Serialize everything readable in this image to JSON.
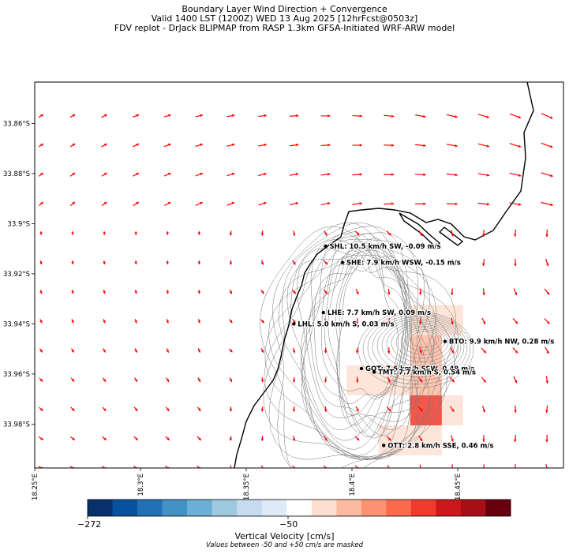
{
  "chart_data": {
    "type": "heatmap",
    "title_lines": [
      "Boundary Layer Wind Direction + Convergence",
      "Valid 1400 LST (1200Z) WED 13 Aug 2025 [12hrFcst@0503z]",
      "FDV replot - DrJack BLIPMAP from RASP 1.3km GFSA-Initiated WRF-ARW model"
    ],
    "xlim": [
      18.25,
      18.5
    ],
    "ylim": [
      -33.9975,
      -33.8435
    ],
    "x_ticks": [
      {
        "value": 18.25,
        "label": "18.25°E"
      },
      {
        "value": 18.3,
        "label": "18.3°E"
      },
      {
        "value": 18.35,
        "label": "18.35°E"
      },
      {
        "value": 18.4,
        "label": "18.4°E"
      },
      {
        "value": 18.45,
        "label": "18.45°E"
      }
    ],
    "y_ticks": [
      {
        "value": -33.86,
        "label": "33.86°S"
      },
      {
        "value": -33.88,
        "label": "33.88°S"
      },
      {
        "value": -33.9,
        "label": "33.9°S"
      },
      {
        "value": -33.92,
        "label": "33.92°S"
      },
      {
        "value": -33.94,
        "label": "33.94°S"
      },
      {
        "value": -33.96,
        "label": "33.96°S"
      },
      {
        "value": -33.98,
        "label": "33.98°S"
      }
    ],
    "stations": [
      {
        "x": 18.3875,
        "y": -33.909,
        "label": "SHL: 10.5 km/h SW, -0.09 m/s"
      },
      {
        "x": 18.3955,
        "y": -33.9155,
        "label": "SHE: 7.9 km/h WSW, -0.15 m/s"
      },
      {
        "x": 18.3865,
        "y": -33.9355,
        "label": "LHE: 7.7 km/h SW, 0.09 m/s"
      },
      {
        "x": 18.3725,
        "y": -33.94,
        "label": "LHL: 5.0 km/h S, 0.03 m/s"
      },
      {
        "x": 18.444,
        "y": -33.947,
        "label": "BTO: 9.9 km/h NW, 0.28 m/s"
      },
      {
        "x": 18.4045,
        "y": -33.9578,
        "label": "GOT: 7.6 km/h SSW, 0.49 m/s"
      },
      {
        "x": 18.4105,
        "y": -33.9592,
        "label": "TMT: 7.7 km/h S, 0.54 m/s"
      },
      {
        "x": 18.415,
        "y": -33.9885,
        "label": "OTT: 2.8 km/h SSE, 0.46 m/s"
      }
    ],
    "convergence_cells": [
      {
        "x": [
          18.4275,
          18.4425
        ],
        "y": [
          -33.9445,
          -33.9325
        ],
        "v": 55
      },
      {
        "x": [
          18.4425,
          18.4525
        ],
        "y": [
          -33.9445,
          -33.9325
        ],
        "v": 55
      },
      {
        "x": [
          18.4275,
          18.4425
        ],
        "y": [
          -33.9565,
          -33.9445
        ],
        "v": 90
      },
      {
        "x": [
          18.4275,
          18.4425
        ],
        "y": [
          -33.9685,
          -33.9565
        ],
        "v": 95
      },
      {
        "x": [
          18.3975,
          18.4125
        ],
        "y": [
          -33.9685,
          -33.9565
        ],
        "v": 60
      },
      {
        "x": [
          18.4125,
          18.4275
        ],
        "y": [
          -33.9685,
          -33.9565
        ],
        "v": 70
      },
      {
        "x": [
          18.4275,
          18.4425
        ],
        "y": [
          -33.9805,
          -33.9685
        ],
        "v": 160
      },
      {
        "x": [
          18.4425,
          18.4525
        ],
        "y": [
          -33.9805,
          -33.9685
        ],
        "v": 55
      },
      {
        "x": [
          18.4125,
          18.4275
        ],
        "y": [
          -33.9925,
          -33.9805
        ],
        "v": 55
      },
      {
        "x": [
          18.4275,
          18.4425
        ],
        "y": [
          -33.9925,
          -33.9805
        ],
        "v": 55
      }
    ],
    "wind_field": {
      "x_start": 18.253,
      "x_step": 0.01495,
      "nx": 18,
      "y_start": -33.857,
      "y_step": -0.0117,
      "ny": 14,
      "color": "#ff0000"
    },
    "colorbar": {
      "colors": [
        "#08306b",
        "#08519c",
        "#2171b5",
        "#4292c6",
        "#6baed6",
        "#9ecae1",
        "#c6dbef",
        "#deebf7",
        "#ffffff",
        "#fee0d2",
        "#fcbba1",
        "#fc9272",
        "#fb6a4a",
        "#ef3b2c",
        "#cb181d",
        "#a50f15",
        "#67000d"
      ],
      "tick_labels": [
        "−272",
        "−50"
      ],
      "label": "Vertical Velocity [cm/s]",
      "note": "Values between -50 and +50 cm/s are masked"
    }
  }
}
